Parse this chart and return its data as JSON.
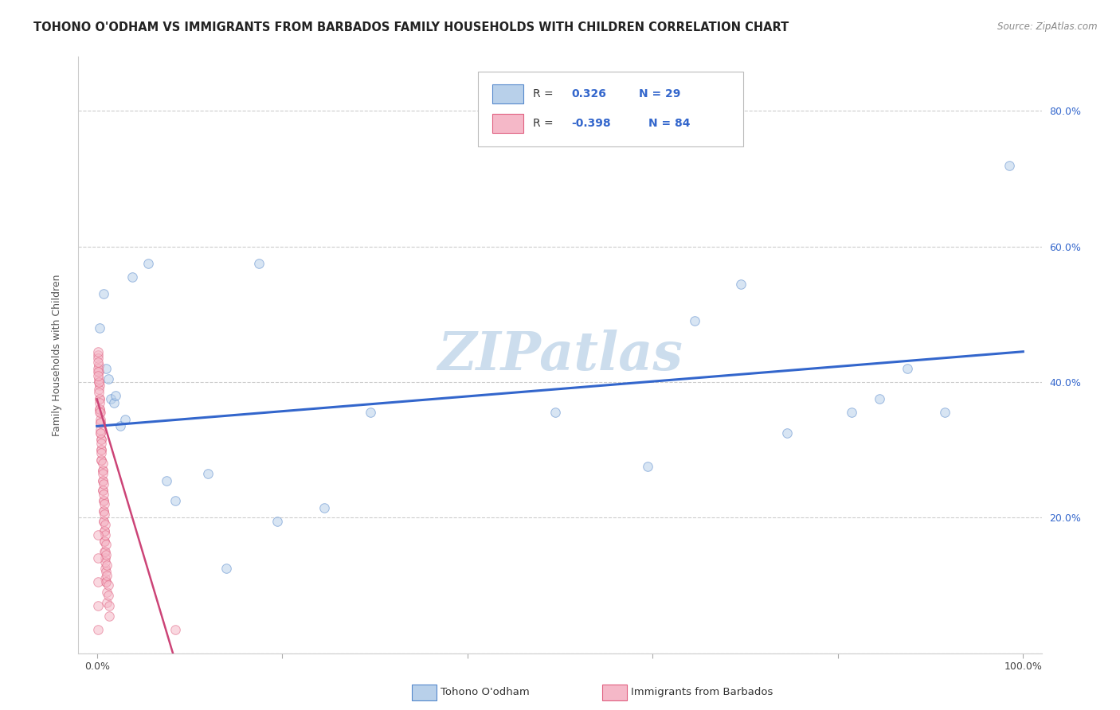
{
  "title": "TOHONO O'ODHAM VS IMMIGRANTS FROM BARBADOS FAMILY HOUSEHOLDS WITH CHILDREN CORRELATION CHART",
  "source": "Source: ZipAtlas.com",
  "ylabel": "Family Households with Children",
  "watermark": "ZIPatlas",
  "legend_v1": "0.326",
  "legend_n1": "N = 29",
  "legend_v2": "-0.398",
  "legend_n2": "N = 84",
  "blue_fill": "#b8d0ea",
  "pink_fill": "#f5b8c8",
  "blue_edge": "#5588cc",
  "pink_edge": "#e06080",
  "blue_line_color": "#3366cc",
  "pink_line_color": "#cc4477",
  "blue_scatter": [
    [
      0.003,
      0.48
    ],
    [
      0.007,
      0.53
    ],
    [
      0.01,
      0.42
    ],
    [
      0.012,
      0.405
    ],
    [
      0.015,
      0.375
    ],
    [
      0.018,
      0.37
    ],
    [
      0.02,
      0.38
    ],
    [
      0.025,
      0.335
    ],
    [
      0.03,
      0.345
    ],
    [
      0.038,
      0.555
    ],
    [
      0.055,
      0.575
    ],
    [
      0.075,
      0.255
    ],
    [
      0.085,
      0.225
    ],
    [
      0.12,
      0.265
    ],
    [
      0.14,
      0.125
    ],
    [
      0.175,
      0.575
    ],
    [
      0.195,
      0.195
    ],
    [
      0.245,
      0.215
    ],
    [
      0.295,
      0.355
    ],
    [
      0.495,
      0.355
    ],
    [
      0.595,
      0.275
    ],
    [
      0.645,
      0.49
    ],
    [
      0.695,
      0.545
    ],
    [
      0.745,
      0.325
    ],
    [
      0.815,
      0.355
    ],
    [
      0.845,
      0.375
    ],
    [
      0.875,
      0.42
    ],
    [
      0.915,
      0.355
    ],
    [
      0.985,
      0.72
    ]
  ],
  "pink_scatter": [
    [
      0.0015,
      0.44
    ],
    [
      0.0018,
      0.425
    ],
    [
      0.002,
      0.415
    ],
    [
      0.002,
      0.4
    ],
    [
      0.003,
      0.395
    ],
    [
      0.003,
      0.375
    ],
    [
      0.003,
      0.36
    ],
    [
      0.004,
      0.355
    ],
    [
      0.004,
      0.34
    ],
    [
      0.004,
      0.325
    ],
    [
      0.005,
      0.315
    ],
    [
      0.005,
      0.3
    ],
    [
      0.005,
      0.285
    ],
    [
      0.006,
      0.27
    ],
    [
      0.006,
      0.255
    ],
    [
      0.006,
      0.24
    ],
    [
      0.007,
      0.225
    ],
    [
      0.007,
      0.21
    ],
    [
      0.007,
      0.195
    ],
    [
      0.008,
      0.18
    ],
    [
      0.008,
      0.165
    ],
    [
      0.008,
      0.15
    ],
    [
      0.009,
      0.14
    ],
    [
      0.009,
      0.125
    ],
    [
      0.009,
      0.11
    ],
    [
      0.01,
      0.105
    ],
    [
      0.001,
      0.435
    ],
    [
      0.0015,
      0.42
    ],
    [
      0.002,
      0.405
    ],
    [
      0.002,
      0.39
    ],
    [
      0.003,
      0.375
    ],
    [
      0.003,
      0.36
    ],
    [
      0.004,
      0.345
    ],
    [
      0.004,
      0.33
    ],
    [
      0.005,
      0.315
    ],
    [
      0.005,
      0.3
    ],
    [
      0.005,
      0.285
    ],
    [
      0.006,
      0.27
    ],
    [
      0.006,
      0.255
    ],
    [
      0.006,
      0.24
    ],
    [
      0.007,
      0.225
    ],
    [
      0.007,
      0.21
    ],
    [
      0.007,
      0.195
    ],
    [
      0.008,
      0.18
    ],
    [
      0.008,
      0.165
    ],
    [
      0.009,
      0.15
    ],
    [
      0.009,
      0.135
    ],
    [
      0.01,
      0.12
    ],
    [
      0.01,
      0.105
    ],
    [
      0.011,
      0.09
    ],
    [
      0.011,
      0.075
    ],
    [
      0.001,
      0.43
    ],
    [
      0.0015,
      0.415
    ],
    [
      0.002,
      0.4
    ],
    [
      0.002,
      0.385
    ],
    [
      0.003,
      0.37
    ],
    [
      0.003,
      0.355
    ],
    [
      0.004,
      0.34
    ],
    [
      0.004,
      0.325
    ],
    [
      0.005,
      0.31
    ],
    [
      0.005,
      0.295
    ],
    [
      0.006,
      0.28
    ],
    [
      0.006,
      0.265
    ],
    [
      0.007,
      0.25
    ],
    [
      0.007,
      0.235
    ],
    [
      0.008,
      0.22
    ],
    [
      0.008,
      0.205
    ],
    [
      0.009,
      0.19
    ],
    [
      0.009,
      0.175
    ],
    [
      0.01,
      0.16
    ],
    [
      0.01,
      0.145
    ],
    [
      0.011,
      0.13
    ],
    [
      0.011,
      0.115
    ],
    [
      0.012,
      0.1
    ],
    [
      0.012,
      0.085
    ],
    [
      0.013,
      0.07
    ],
    [
      0.013,
      0.055
    ],
    [
      0.085,
      0.035
    ],
    [
      0.001,
      0.445
    ],
    [
      0.001,
      0.41
    ],
    [
      0.001,
      0.175
    ],
    [
      0.001,
      0.14
    ],
    [
      0.001,
      0.105
    ],
    [
      0.001,
      0.07
    ],
    [
      0.001,
      0.035
    ]
  ],
  "xlim": [
    -0.02,
    1.02
  ],
  "ylim": [
    0.0,
    0.88
  ],
  "xtick_positions": [
    0.0,
    0.2,
    0.4,
    0.6,
    0.8,
    1.0
  ],
  "xticklabels_bottom": [
    "0.0%",
    "",
    "",
    "",
    "",
    "100.0%"
  ],
  "ytick_positions": [
    0.0,
    0.2,
    0.4,
    0.6,
    0.8
  ],
  "right_yticklabels": [
    "",
    "20.0%",
    "40.0%",
    "60.0%",
    "80.0%"
  ],
  "blue_line_x": [
    0.0,
    1.0
  ],
  "blue_line_y": [
    0.335,
    0.445
  ],
  "pink_line_x": [
    0.0,
    0.082
  ],
  "pink_line_y": [
    0.375,
    0.0
  ],
  "grid_color": "#cccccc",
  "bg_color": "#ffffff",
  "watermark_color": "#ccdded",
  "title_fontsize": 10.5,
  "axis_label_fontsize": 9,
  "tick_fontsize": 9,
  "scatter_size": 70,
  "scatter_alpha": 0.55,
  "legend_fontsize": 10
}
